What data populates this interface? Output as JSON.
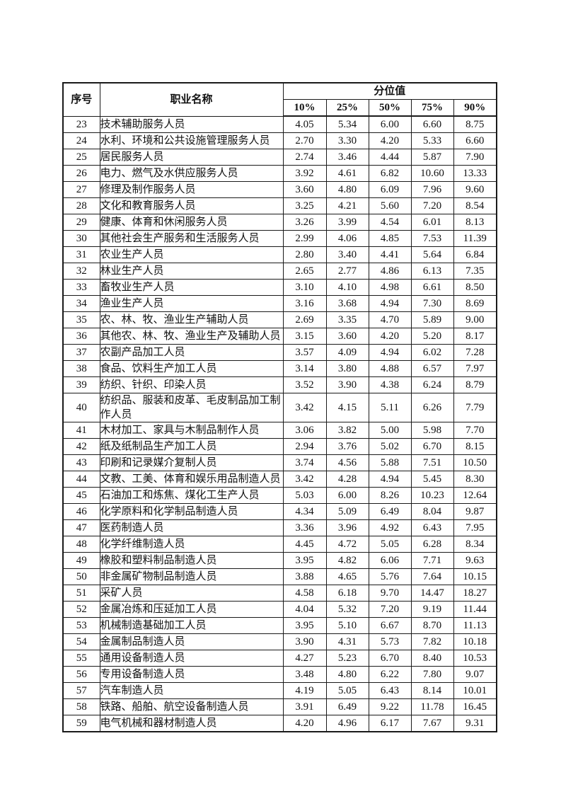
{
  "table": {
    "header": {
      "col_serial": "序号",
      "col_occupation": "职业名称",
      "col_percentile_group": "分位值",
      "percentile_cols": [
        "10%",
        "25%",
        "50%",
        "75%",
        "90%"
      ]
    },
    "rows": [
      {
        "no": "23",
        "name": "技术辅助服务人员",
        "values": [
          "4.05",
          "5.34",
          "6.00",
          "6.60",
          "8.75"
        ]
      },
      {
        "no": "24",
        "name": "水利、环境和公共设施管理服务人员",
        "values": [
          "2.70",
          "3.30",
          "4.20",
          "5.33",
          "6.60"
        ]
      },
      {
        "no": "25",
        "name": "居民服务人员",
        "values": [
          "2.74",
          "3.46",
          "4.44",
          "5.87",
          "7.90"
        ]
      },
      {
        "no": "26",
        "name": "电力、燃气及水供应服务人员",
        "values": [
          "3.92",
          "4.61",
          "6.82",
          "10.60",
          "13.33"
        ]
      },
      {
        "no": "27",
        "name": "修理及制作服务人员",
        "values": [
          "3.60",
          "4.80",
          "6.09",
          "7.96",
          "9.60"
        ]
      },
      {
        "no": "28",
        "name": "文化和教育服务人员",
        "values": [
          "3.25",
          "4.21",
          "5.60",
          "7.20",
          "8.54"
        ]
      },
      {
        "no": "29",
        "name": "健康、体育和休闲服务人员",
        "values": [
          "3.26",
          "3.99",
          "4.54",
          "6.01",
          "8.13"
        ]
      },
      {
        "no": "30",
        "name": "其他社会生产服务和生活服务人员",
        "values": [
          "2.99",
          "4.06",
          "4.85",
          "7.53",
          "11.39"
        ]
      },
      {
        "no": "31",
        "name": "农业生产人员",
        "values": [
          "2.80",
          "3.40",
          "4.41",
          "5.64",
          "6.84"
        ]
      },
      {
        "no": "32",
        "name": "林业生产人员",
        "values": [
          "2.65",
          "2.77",
          "4.86",
          "6.13",
          "7.35"
        ]
      },
      {
        "no": "33",
        "name": "畜牧业生产人员",
        "values": [
          "3.10",
          "4.10",
          "4.98",
          "6.61",
          "8.50"
        ]
      },
      {
        "no": "34",
        "name": "渔业生产人员",
        "values": [
          "3.16",
          "3.68",
          "4.94",
          "7.30",
          "8.69"
        ]
      },
      {
        "no": "35",
        "name": "农、林、牧、渔业生产辅助人员",
        "values": [
          "2.69",
          "3.35",
          "4.70",
          "5.89",
          "9.00"
        ]
      },
      {
        "no": "36",
        "name": "其他农、林、牧、渔业生产及辅助人员",
        "values": [
          "3.15",
          "3.60",
          "4.20",
          "5.20",
          "8.17"
        ]
      },
      {
        "no": "37",
        "name": "农副产品加工人员",
        "values": [
          "3.57",
          "4.09",
          "4.94",
          "6.02",
          "7.28"
        ]
      },
      {
        "no": "38",
        "name": "食品、饮料生产加工人员",
        "values": [
          "3.14",
          "3.80",
          "4.88",
          "6.57",
          "7.97"
        ]
      },
      {
        "no": "39",
        "name": "纺织、针织、印染人员",
        "values": [
          "3.52",
          "3.90",
          "4.38",
          "6.24",
          "8.79"
        ]
      },
      {
        "no": "40",
        "name": "纺织品、服装和皮革、毛皮制品加工制作人员",
        "values": [
          "3.42",
          "4.15",
          "5.11",
          "6.26",
          "7.79"
        ]
      },
      {
        "no": "41",
        "name": "木材加工、家具与木制品制作人员",
        "values": [
          "3.06",
          "3.82",
          "5.00",
          "5.98",
          "7.70"
        ]
      },
      {
        "no": "42",
        "name": "纸及纸制品生产加工人员",
        "values": [
          "2.94",
          "3.76",
          "5.02",
          "6.70",
          "8.15"
        ]
      },
      {
        "no": "43",
        "name": "印刷和记录媒介复制人员",
        "values": [
          "3.74",
          "4.56",
          "5.88",
          "7.51",
          "10.50"
        ]
      },
      {
        "no": "44",
        "name": "文教、工美、体育和娱乐用品制造人员",
        "values": [
          "3.42",
          "4.28",
          "4.94",
          "5.45",
          "8.30"
        ]
      },
      {
        "no": "45",
        "name": "石油加工和炼焦、煤化工生产人员",
        "values": [
          "5.03",
          "6.00",
          "8.26",
          "10.23",
          "12.64"
        ]
      },
      {
        "no": "46",
        "name": "化学原料和化学制品制造人员",
        "values": [
          "4.34",
          "5.09",
          "6.49",
          "8.04",
          "9.87"
        ]
      },
      {
        "no": "47",
        "name": "医药制造人员",
        "values": [
          "3.36",
          "3.96",
          "4.92",
          "6.43",
          "7.95"
        ]
      },
      {
        "no": "48",
        "name": "化学纤维制造人员",
        "values": [
          "4.45",
          "4.72",
          "5.05",
          "6.28",
          "8.34"
        ]
      },
      {
        "no": "49",
        "name": "橡胶和塑料制品制造人员",
        "values": [
          "3.95",
          "4.82",
          "6.06",
          "7.71",
          "9.63"
        ]
      },
      {
        "no": "50",
        "name": "非金属矿物制品制造人员",
        "values": [
          "3.88",
          "4.65",
          "5.76",
          "7.64",
          "10.15"
        ]
      },
      {
        "no": "51",
        "name": "采矿人员",
        "values": [
          "4.58",
          "6.18",
          "9.70",
          "14.47",
          "18.27"
        ]
      },
      {
        "no": "52",
        "name": "金属冶炼和压延加工人员",
        "values": [
          "4.04",
          "5.32",
          "7.20",
          "9.19",
          "11.44"
        ]
      },
      {
        "no": "53",
        "name": "机械制造基础加工人员",
        "values": [
          "3.95",
          "5.10",
          "6.67",
          "8.70",
          "11.13"
        ]
      },
      {
        "no": "54",
        "name": "金属制品制造人员",
        "values": [
          "3.90",
          "4.31",
          "5.73",
          "7.82",
          "10.18"
        ]
      },
      {
        "no": "55",
        "name": "通用设备制造人员",
        "values": [
          "4.27",
          "5.23",
          "6.70",
          "8.40",
          "10.53"
        ]
      },
      {
        "no": "56",
        "name": "专用设备制造人员",
        "values": [
          "3.48",
          "4.80",
          "6.22",
          "7.80",
          "9.07"
        ]
      },
      {
        "no": "57",
        "name": "汽车制造人员",
        "values": [
          "4.19",
          "5.05",
          "6.43",
          "8.14",
          "10.01"
        ]
      },
      {
        "no": "58",
        "name": "铁路、船舶、航空设备制造人员",
        "values": [
          "3.91",
          "6.49",
          "9.22",
          "11.78",
          "16.45"
        ]
      },
      {
        "no": "59",
        "name": "电气机械和器材制造人员",
        "values": [
          "4.20",
          "4.96",
          "6.17",
          "7.67",
          "9.31"
        ]
      }
    ]
  }
}
